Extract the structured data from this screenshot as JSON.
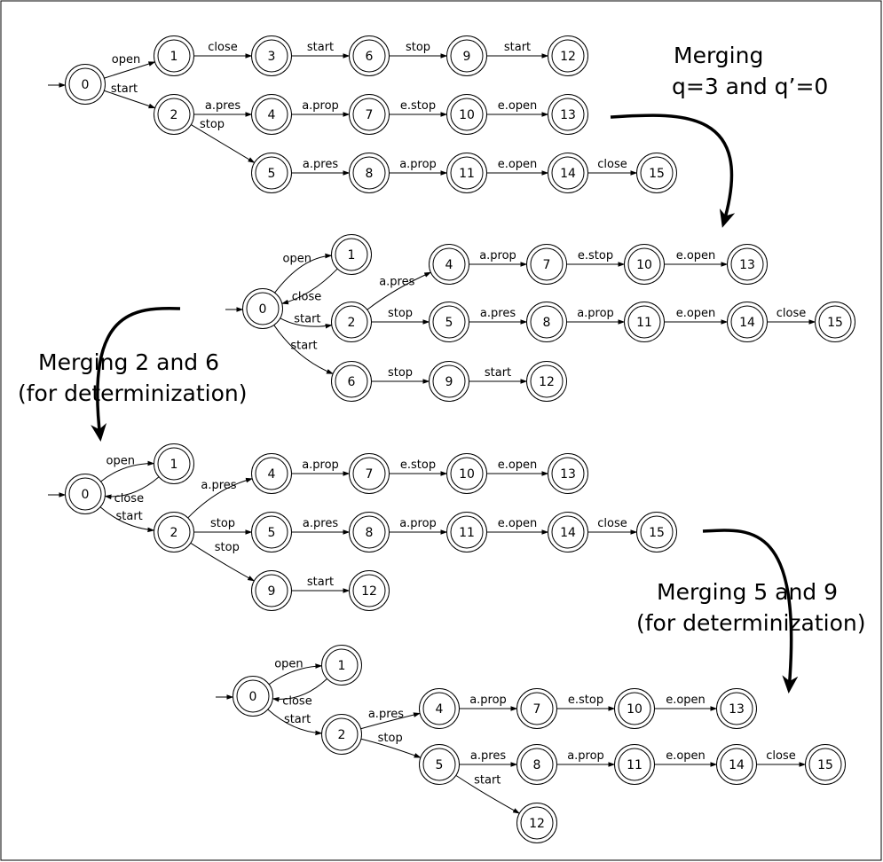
{
  "captions": {
    "c1": [
      "Merging",
      "q=3 and q’=0"
    ],
    "c2": [
      "Merging 2 and 6",
      "(for determinization)"
    ],
    "c3": [
      "Merging 5 and 9",
      "(for determinization)"
    ]
  },
  "diagrams": [
    {
      "id": "automaton-1",
      "initial": "0",
      "nodes": [
        "0",
        "1",
        "2",
        "3",
        "4",
        "5",
        "6",
        "7",
        "8",
        "9",
        "10",
        "11",
        "12",
        "13",
        "14",
        "15"
      ],
      "edges": [
        {
          "from": "0",
          "to": "1",
          "label": "open"
        },
        {
          "from": "0",
          "to": "2",
          "label": "start"
        },
        {
          "from": "1",
          "to": "3",
          "label": "close"
        },
        {
          "from": "3",
          "to": "6",
          "label": "start"
        },
        {
          "from": "6",
          "to": "9",
          "label": "stop"
        },
        {
          "from": "9",
          "to": "12",
          "label": "start"
        },
        {
          "from": "2",
          "to": "4",
          "label": "a.pres"
        },
        {
          "from": "4",
          "to": "7",
          "label": "a.prop"
        },
        {
          "from": "7",
          "to": "10",
          "label": "e.stop"
        },
        {
          "from": "10",
          "to": "13",
          "label": "e.open"
        },
        {
          "from": "2",
          "to": "5",
          "label": "stop"
        },
        {
          "from": "5",
          "to": "8",
          "label": "a.pres"
        },
        {
          "from": "8",
          "to": "11",
          "label": "a.prop"
        },
        {
          "from": "11",
          "to": "14",
          "label": "e.open"
        },
        {
          "from": "14",
          "to": "15",
          "label": "close"
        }
      ]
    },
    {
      "id": "automaton-2",
      "initial": "0",
      "nodes": [
        "0",
        "1",
        "2",
        "4",
        "5",
        "6",
        "7",
        "8",
        "9",
        "10",
        "11",
        "12",
        "13",
        "14",
        "15"
      ],
      "edges": [
        {
          "from": "0",
          "to": "1",
          "label": "open"
        },
        {
          "from": "1",
          "to": "0",
          "label": "close"
        },
        {
          "from": "0",
          "to": "2",
          "label": "start"
        },
        {
          "from": "0",
          "to": "6",
          "label": "start"
        },
        {
          "from": "2",
          "to": "4",
          "label": "a.pres"
        },
        {
          "from": "4",
          "to": "7",
          "label": "a.prop"
        },
        {
          "from": "7",
          "to": "10",
          "label": "e.stop"
        },
        {
          "from": "10",
          "to": "13",
          "label": "e.open"
        },
        {
          "from": "2",
          "to": "5",
          "label": "stop"
        },
        {
          "from": "5",
          "to": "8",
          "label": "a.pres"
        },
        {
          "from": "8",
          "to": "11",
          "label": "a.prop"
        },
        {
          "from": "11",
          "to": "14",
          "label": "e.open"
        },
        {
          "from": "14",
          "to": "15",
          "label": "close"
        },
        {
          "from": "6",
          "to": "9",
          "label": "stop"
        },
        {
          "from": "9",
          "to": "12",
          "label": "start"
        }
      ]
    },
    {
      "id": "automaton-3",
      "initial": "0",
      "nodes": [
        "0",
        "1",
        "2",
        "4",
        "5",
        "7",
        "8",
        "9",
        "10",
        "11",
        "12",
        "13",
        "14",
        "15"
      ],
      "edges": [
        {
          "from": "0",
          "to": "1",
          "label": "open"
        },
        {
          "from": "1",
          "to": "0",
          "label": "close"
        },
        {
          "from": "0",
          "to": "2",
          "label": "start"
        },
        {
          "from": "2",
          "to": "4",
          "label": "a.pres"
        },
        {
          "from": "4",
          "to": "7",
          "label": "a.prop"
        },
        {
          "from": "7",
          "to": "10",
          "label": "e.stop"
        },
        {
          "from": "10",
          "to": "13",
          "label": "e.open"
        },
        {
          "from": "2",
          "to": "5",
          "label": "stop"
        },
        {
          "from": "5",
          "to": "8",
          "label": "a.pres"
        },
        {
          "from": "8",
          "to": "11",
          "label": "a.prop"
        },
        {
          "from": "11",
          "to": "14",
          "label": "e.open"
        },
        {
          "from": "14",
          "to": "15",
          "label": "close"
        },
        {
          "from": "2",
          "to": "9",
          "label": "stop"
        },
        {
          "from": "9",
          "to": "12",
          "label": "start"
        }
      ]
    },
    {
      "id": "automaton-4",
      "initial": "0",
      "nodes": [
        "0",
        "1",
        "2",
        "4",
        "5",
        "7",
        "8",
        "10",
        "11",
        "12",
        "13",
        "14",
        "15"
      ],
      "edges": [
        {
          "from": "0",
          "to": "1",
          "label": "open"
        },
        {
          "from": "1",
          "to": "0",
          "label": "close"
        },
        {
          "from": "0",
          "to": "2",
          "label": "start"
        },
        {
          "from": "2",
          "to": "4",
          "label": "a.pres"
        },
        {
          "from": "4",
          "to": "7",
          "label": "a.prop"
        },
        {
          "from": "7",
          "to": "10",
          "label": "e.stop"
        },
        {
          "from": "10",
          "to": "13",
          "label": "e.open"
        },
        {
          "from": "2",
          "to": "5",
          "label": "stop"
        },
        {
          "from": "5",
          "to": "8",
          "label": "a.pres"
        },
        {
          "from": "8",
          "to": "11",
          "label": "a.prop"
        },
        {
          "from": "11",
          "to": "14",
          "label": "e.open"
        },
        {
          "from": "14",
          "to": "15",
          "label": "close"
        },
        {
          "from": "5",
          "to": "12",
          "label": "start"
        }
      ]
    }
  ]
}
